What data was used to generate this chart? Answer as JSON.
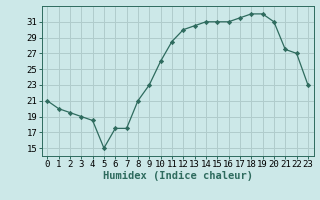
{
  "x": [
    0,
    1,
    2,
    3,
    4,
    5,
    6,
    7,
    8,
    9,
    10,
    11,
    12,
    13,
    14,
    15,
    16,
    17,
    18,
    19,
    20,
    21,
    22,
    23
  ],
  "y": [
    21,
    20,
    19.5,
    19,
    18.5,
    15,
    17.5,
    17.5,
    21,
    23,
    26,
    28.5,
    30,
    30.5,
    31,
    31,
    31,
    31.5,
    32,
    32,
    31,
    27.5,
    27,
    23
  ],
  "line_color": "#2e6b5e",
  "marker": "D",
  "marker_size": 2.2,
  "bg_color": "#cce8e8",
  "grid_color": "#b0cccc",
  "xlabel": "Humidex (Indice chaleur)",
  "xlim": [
    -0.5,
    23.5
  ],
  "ylim": [
    14,
    33
  ],
  "yticks": [
    15,
    17,
    19,
    21,
    23,
    25,
    27,
    29,
    31
  ],
  "xticks": [
    0,
    1,
    2,
    3,
    4,
    5,
    6,
    7,
    8,
    9,
    10,
    11,
    12,
    13,
    14,
    15,
    16,
    17,
    18,
    19,
    20,
    21,
    22,
    23
  ],
  "tick_label_fontsize": 6.5,
  "xlabel_fontsize": 7.5
}
